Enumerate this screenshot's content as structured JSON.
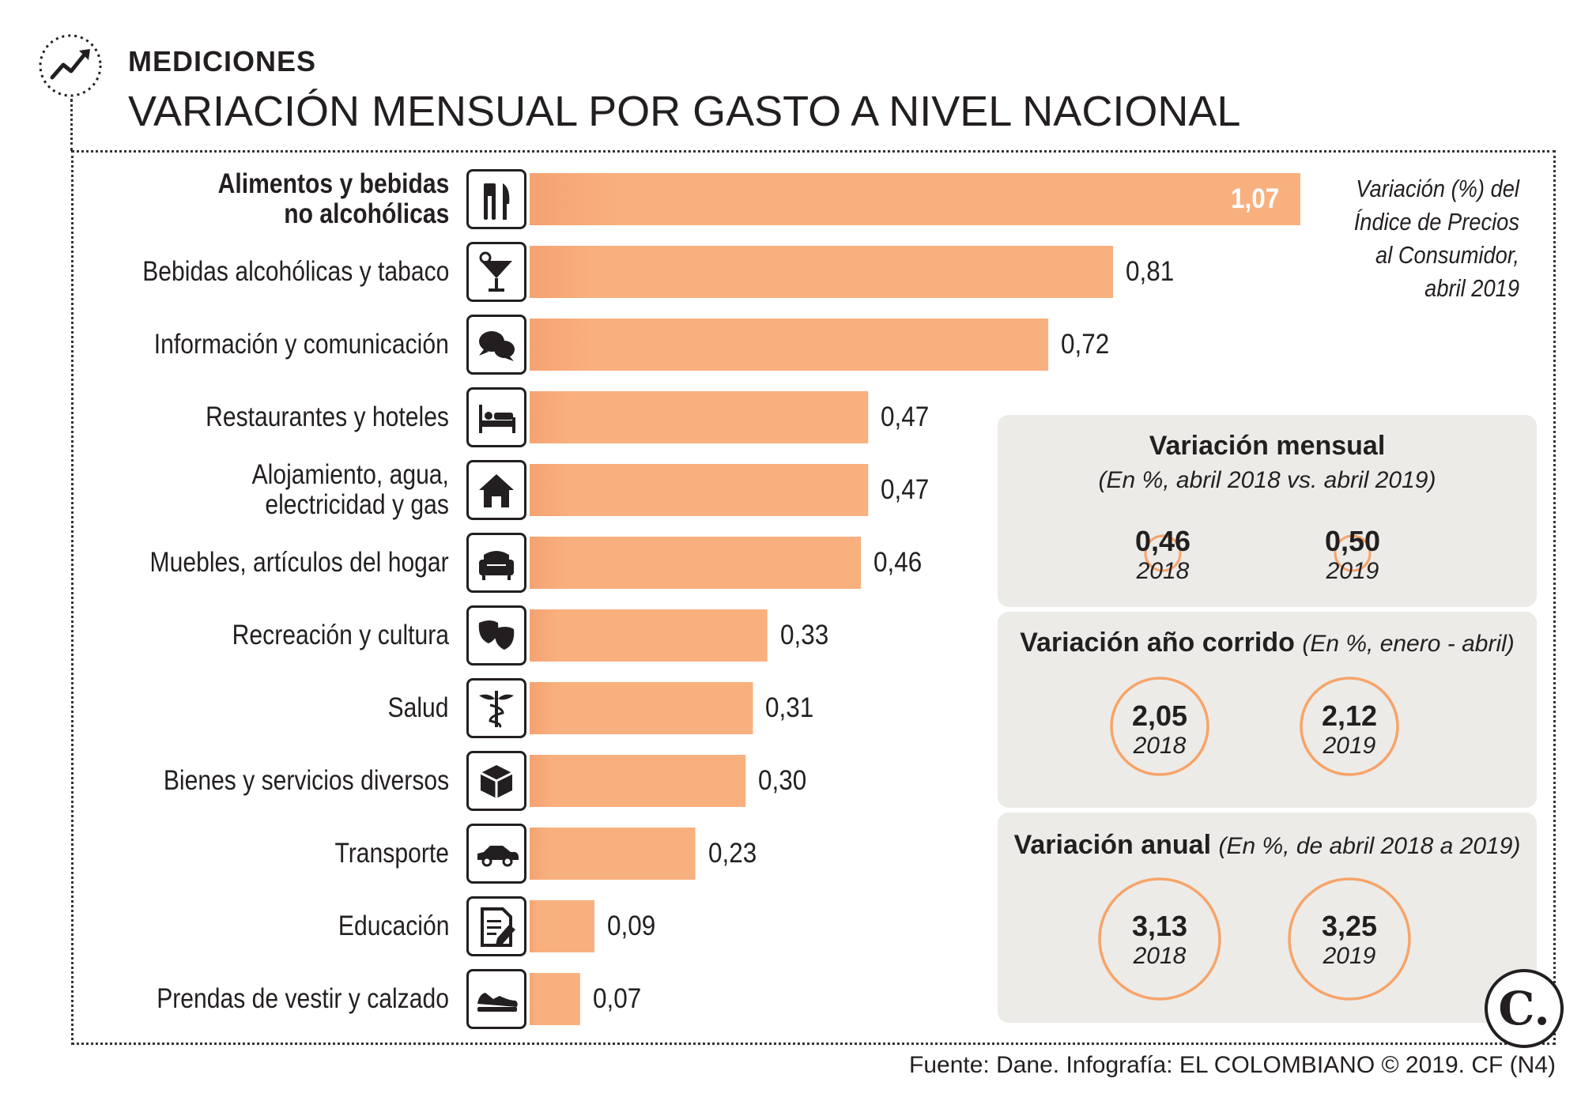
{
  "header": {
    "section": "MEDICIONES",
    "title": "VARIACIÓN MENSUAL POR GASTO A NIVEL NACIONAL"
  },
  "colors": {
    "bar": "#f9b07f",
    "bar_dark": "#f4a371",
    "accent": "#f7a469",
    "panel": "#ecebe8",
    "text": "#231f20"
  },
  "chart_data": {
    "type": "bar",
    "orientation": "horizontal",
    "title": "VARIACIÓN MENSUAL POR GASTO A NIVEL NACIONAL",
    "note": "Variación (%) del Índice de Precios al Consumidor, abril 2019",
    "categories": [
      "Alimentos y bebidas no alcohólicas",
      "Bebidas alcohólicas y tabaco",
      "Información y comunicación",
      "Restaurantes y hoteles",
      "Alojamiento, agua, electricidad y gas",
      "Muebles, artículos del hogar",
      "Recreación y cultura",
      "Salud",
      "Bienes y servicios diversos",
      "Transporte",
      "Educación",
      "Prendas de vestir y calzado"
    ],
    "labels": [
      "Alimentos y bebidas\nno alcohólicas",
      "Bebidas alcohólicas y tabaco",
      "Información y comunicación",
      "Restaurantes y hoteles",
      "Alojamiento, agua,\nelectricidad y gas",
      "Muebles, artículos del hogar",
      "Recreación y cultura",
      "Salud",
      "Bienes y servicios diversos",
      "Transporte",
      "Educación",
      "Prendas de vestir y calzado"
    ],
    "values": [
      1.07,
      0.81,
      0.72,
      0.47,
      0.47,
      0.46,
      0.33,
      0.31,
      0.3,
      0.23,
      0.09,
      0.07
    ],
    "value_labels": [
      "1,07",
      "0,81",
      "0,72",
      "0,47",
      "0,47",
      "0,46",
      "0,33",
      "0,31",
      "0,30",
      "0,23",
      "0,09",
      "0,07"
    ],
    "icons": [
      "cutlery-icon",
      "cocktail-icon",
      "chat-bubbles-icon",
      "bed-icon",
      "house-icon",
      "armchair-icon",
      "theater-masks-icon",
      "caduceus-icon",
      "box-icon",
      "car-icon",
      "document-pen-icon",
      "sneaker-icon"
    ],
    "xlim": [
      0,
      1.07
    ]
  },
  "note": {
    "line1": "Variación (%) del",
    "line2": "Índice de Precios",
    "line3": "al Consumidor,",
    "line4": "abril 2019"
  },
  "panels": {
    "mensual": {
      "title": "Variación mensual",
      "subtitle": "(En %, abril 2018 vs. abril 2019)",
      "stats": [
        {
          "value": "0,46",
          "year": "2018"
        },
        {
          "value": "0,50",
          "year": "2019"
        }
      ]
    },
    "corrido": {
      "title": "Variación año corrido",
      "subtitle": "(En %, enero - abril)",
      "stats": [
        {
          "value": "2,05",
          "year": "2018"
        },
        {
          "value": "2,12",
          "year": "2019"
        }
      ]
    },
    "anual": {
      "title": "Variación anual",
      "subtitle": "(En %, de abril 2018 a 2019)",
      "stats": [
        {
          "value": "3,13",
          "year": "2018"
        },
        {
          "value": "3,25",
          "year": "2019"
        }
      ]
    }
  },
  "footer": {
    "source": "Fuente: Dane. Infografía: EL COLOMBIANO © 2019. CF (N4)",
    "logo": "C."
  }
}
